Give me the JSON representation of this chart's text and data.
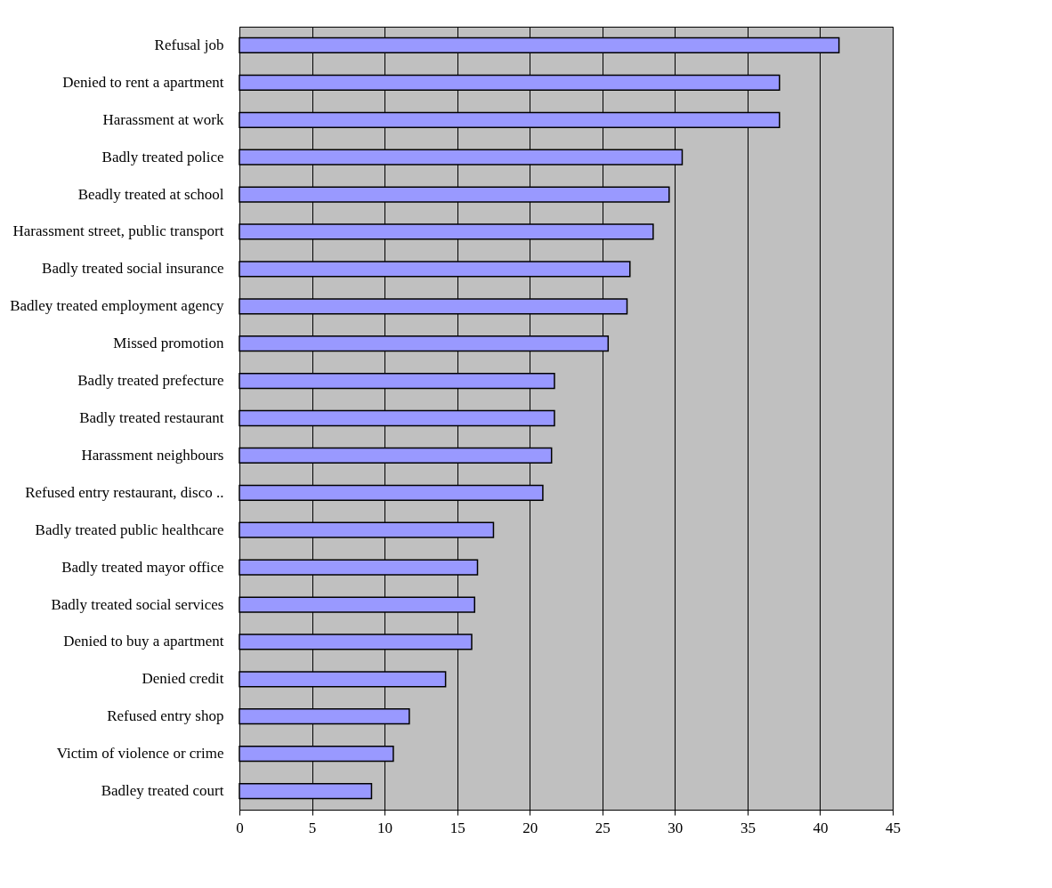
{
  "chart_data": {
    "type": "bar",
    "orientation": "horizontal",
    "categories": [
      "Refusal job",
      "Denied to rent a apartment",
      "Harassment at work",
      "Badly treated police",
      "Beadly treated at school",
      "Harassment street, public transport",
      "Badly treated social insurance",
      "Badley treated employment agency",
      "Missed promotion",
      "Badly treated prefecture",
      "Badly treated restaurant",
      "Harassment neighbours",
      "Refused entry restaurant, disco ..",
      "Badly treated public healthcare",
      "Badly treated mayor office",
      "Badly treated social services",
      "Denied to buy a apartment",
      "Denied credit",
      "Refused entry shop",
      "Victim of violence or crime",
      "Badley treated court"
    ],
    "values": [
      41.3,
      37.2,
      37.2,
      30.5,
      29.6,
      28.5,
      26.9,
      26.7,
      25.4,
      21.7,
      21.7,
      21.5,
      20.9,
      17.5,
      16.4,
      16.2,
      16.0,
      14.2,
      11.7,
      10.6,
      9.1
    ],
    "color": "#9999ff",
    "xlim": [
      0,
      45
    ],
    "xticks": [
      0,
      5,
      10,
      15,
      20,
      25,
      30,
      35,
      40,
      45
    ],
    "grid": "x"
  }
}
